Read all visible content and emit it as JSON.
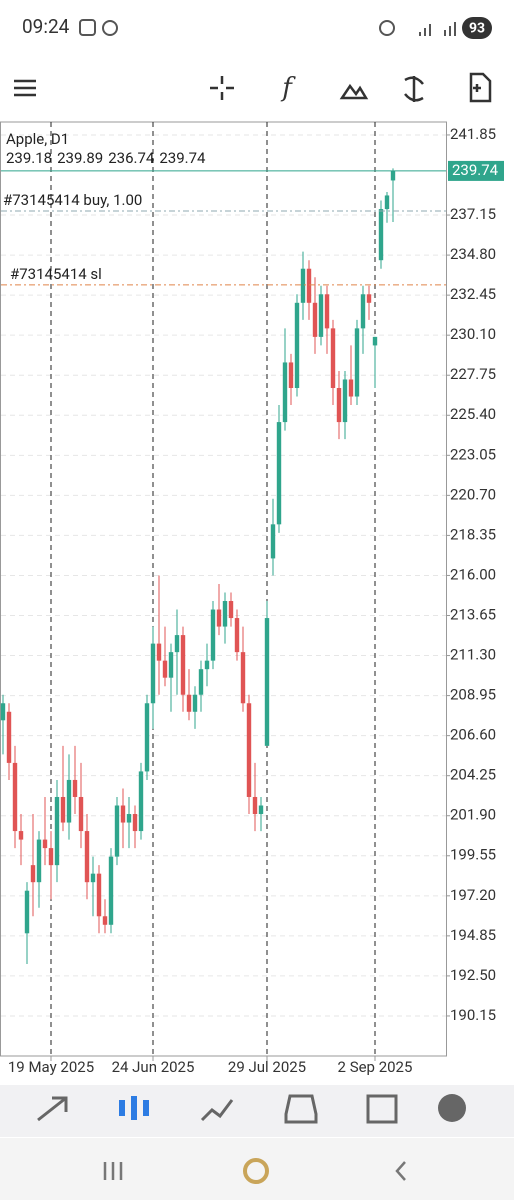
{
  "status_bar": {
    "time": "09:24",
    "battery": "93"
  },
  "toolbar": {
    "indicators_icon": "f"
  },
  "chart_data": {
    "type": "candlestick",
    "symbol": "Apple, D1",
    "ohlc_line": [
      239.18,
      239.89,
      236.74,
      239.74
    ],
    "current_price": 239.74,
    "order_lines": [
      {
        "label": "#73145414 buy, 1.00",
        "price": 237.39,
        "color": "#8fa9b0"
      },
      {
        "label": "#73145414 sl",
        "price": 233.05,
        "color": "#e0854a"
      }
    ],
    "up_color": "#2fa58c",
    "down_color": "#e05454",
    "categories": [
      null,
      null,
      null,
      null,
      null,
      null,
      null,
      null,
      "19 May 2025",
      null,
      null,
      null,
      null,
      null,
      null,
      null,
      null,
      null,
      null,
      null,
      null,
      null,
      null,
      null,
      null,
      "24 Jun 2025",
      null,
      null,
      null,
      null,
      null,
      null,
      null,
      null,
      null,
      null,
      null,
      null,
      null,
      null,
      null,
      null,
      null,
      null,
      "29 Jul 2025",
      null,
      null,
      null,
      null,
      null,
      null,
      null,
      null,
      null,
      null,
      null,
      null,
      null,
      null,
      null,
      null,
      null,
      "2 Sep 2025",
      null,
      null,
      null
    ],
    "open": [
      207.5,
      208,
      205,
      201,
      195,
      199,
      198,
      200.5,
      200,
      199,
      203,
      201.5,
      204,
      203,
      201,
      198,
      198.5,
      196,
      195.5,
      199.5,
      202.5,
      201.5,
      202,
      201,
      204.5,
      208.5,
      212,
      211,
      210,
      211.5,
      212.5,
      209,
      208,
      209,
      210.5,
      211,
      214,
      213,
      214.5,
      213.5,
      211.5,
      208.5,
      203,
      202,
      206,
      217,
      219,
      225,
      228.5,
      227,
      232,
      234,
      232,
      230,
      232.5,
      230.5,
      227,
      225,
      227.5,
      226.5,
      230.5,
      232.5,
      229.5,
      234.5,
      237.5,
      239.18
    ],
    "high": [
      209,
      208.5,
      206,
      202,
      198,
      202,
      201,
      203,
      201,
      204,
      206,
      205.5,
      206,
      205,
      202,
      199.5,
      199,
      197,
      200,
      203,
      203.5,
      203,
      202.5,
      205,
      209,
      213,
      216,
      213,
      212,
      214,
      213,
      210.5,
      209.5,
      211,
      212,
      214.5,
      215.5,
      215,
      215,
      214,
      213,
      209,
      205,
      203,
      214.5,
      220.5,
      226,
      230.5,
      229,
      232.5,
      235,
      234.5,
      233.5,
      233,
      233,
      231,
      228,
      228,
      229.5,
      231,
      233,
      233,
      230,
      238,
      238.5,
      239.89
    ],
    "low": [
      205.5,
      204,
      200,
      199,
      193.2,
      196,
      196.5,
      199,
      197,
      198,
      201,
      200.5,
      202,
      200,
      197,
      196,
      195,
      195,
      195,
      199,
      200,
      200,
      200,
      200.5,
      204,
      207,
      209,
      209.5,
      208,
      209,
      208,
      207.5,
      207,
      208,
      209.5,
      210.5,
      212.5,
      212,
      213,
      211,
      208,
      202,
      201,
      201,
      206,
      216,
      218.5,
      224.5,
      226,
      226.5,
      231,
      231,
      229,
      229.5,
      229,
      226,
      224,
      224,
      226,
      226,
      229,
      231,
      227,
      234,
      236.7,
      236.74
    ],
    "close": [
      208.5,
      205,
      201,
      200.5,
      197.5,
      198,
      200.5,
      200,
      199,
      203,
      201.5,
      204,
      203,
      201,
      198,
      198.5,
      196,
      195.5,
      199.5,
      202.5,
      201.5,
      202,
      201,
      204.5,
      208.5,
      212,
      211,
      210,
      211.5,
      212.5,
      209,
      208,
      209,
      210.5,
      211,
      214,
      213,
      214.5,
      213.5,
      211.5,
      208.5,
      203,
      202,
      202.5,
      213.5,
      219,
      225,
      228.5,
      227,
      232,
      234,
      232,
      230,
      232.5,
      230.5,
      227,
      225,
      227.5,
      226.5,
      230.5,
      232.5,
      232,
      230,
      237.5,
      238.3,
      239.74
    ],
    "ylim": [
      187.8,
      242.61
    ],
    "yticks": [
      241.85,
      237.15,
      {
        "value": 234.8,
        "label": "234.80"
      },
      232.45,
      {
        "value": 230.1,
        "label": "230.10"
      },
      227.75,
      {
        "value": 225.4,
        "label": "225.40"
      },
      223.05,
      {
        "value": 220.7,
        "label": "220.70"
      },
      218.35,
      {
        "value": 216,
        "label": "216.00"
      },
      213.65,
      {
        "value": 211.3,
        "label": "211.30"
      },
      208.95,
      {
        "value": 206.6,
        "label": "206.60"
      },
      204.25,
      {
        "value": 201.9,
        "label": "201.90"
      },
      199.55,
      {
        "value": 197.2,
        "label": "197.20"
      },
      194.85,
      {
        "value": 192.5,
        "label": "192.50"
      },
      190.15
    ],
    "grid": true
  }
}
